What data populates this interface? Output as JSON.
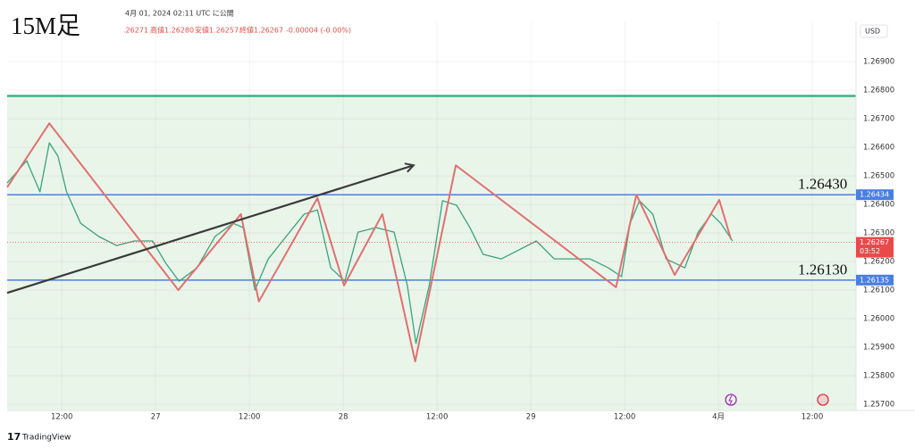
{
  "chart_data": {
    "type": "line",
    "title": "15M足",
    "subtitle": "4月 01, 2024 02:11 UTC に公開",
    "ohlc_labels": [
      ".26271",
      "高値1.26280",
      "安値1.26257",
      "終値1.26267",
      "-0.00004 (-0.00%)"
    ],
    "currency": "USD",
    "brand": "TradingView",
    "xlim": [
      5,
      113.6
    ],
    "ylim": [
      1.25678,
      1.27038
    ],
    "grid": true,
    "xticks": [
      {
        "value": 12,
        "label": "12:00"
      },
      {
        "value": 24,
        "label": "27"
      },
      {
        "value": 36,
        "label": "12:00"
      },
      {
        "value": 48,
        "label": "28"
      },
      {
        "value": 60,
        "label": "12:00"
      },
      {
        "value": 72,
        "label": "29"
      },
      {
        "value": 84,
        "label": "12:00"
      },
      {
        "value": 96,
        "label": "4月"
      },
      {
        "value": 108,
        "label": "12:00"
      }
    ],
    "yticks": [
      {
        "value": 1.257,
        "label": "1.25700"
      },
      {
        "value": 1.258,
        "label": "1.25800"
      },
      {
        "value": 1.259,
        "label": "1.25900"
      },
      {
        "value": 1.26,
        "label": "1.26000"
      },
      {
        "value": 1.261,
        "label": "1.26100"
      },
      {
        "value": 1.262,
        "label": "1.26200"
      },
      {
        "value": 1.263,
        "label": "1.26300"
      },
      {
        "value": 1.264,
        "label": "1.26400"
      },
      {
        "value": 1.265,
        "label": "1.26500"
      },
      {
        "value": 1.266,
        "label": "1.26600"
      },
      {
        "value": 1.267,
        "label": "1.26700"
      },
      {
        "value": 1.268,
        "label": "1.26800"
      },
      {
        "value": 1.269,
        "label": "1.26900"
      }
    ],
    "series": [
      {
        "color": "#3aa37a",
        "x": [
          5,
          7.5,
          9.2,
          10.4,
          11.5,
          12.6,
          14.4,
          16.7,
          19,
          21.3,
          23.6,
          25.3,
          27,
          29.3,
          31.6,
          33.9,
          35.2,
          36.7,
          38.4,
          40.7,
          43,
          44.7,
          46.4,
          48.2,
          49.9,
          52.2,
          54.5,
          56.2,
          57.3,
          59,
          60.7,
          62.5,
          64.2,
          65.9,
          68.2,
          70.5,
          72.7,
          75,
          77.3,
          79.6,
          81.9,
          83.6,
          84.7,
          85.9,
          87.6,
          89.3,
          91.7,
          93.4,
          95.1,
          96.3,
          97.8
        ],
        "values": [
          1.26475,
          1.26553,
          1.26444,
          1.26616,
          1.26569,
          1.26444,
          1.26334,
          1.26288,
          1.26256,
          1.26272,
          1.26272,
          1.26194,
          1.26131,
          1.26178,
          1.26288,
          1.26334,
          1.26319,
          1.261,
          1.26209,
          1.26288,
          1.26366,
          1.26381,
          1.26178,
          1.26131,
          1.26303,
          1.26319,
          1.26303,
          1.26116,
          1.25913,
          1.26116,
          1.26413,
          1.26397,
          1.26319,
          1.26225,
          1.26209,
          1.26241,
          1.26272,
          1.26209,
          1.26209,
          1.26209,
          1.26178,
          1.26147,
          1.26334,
          1.26413,
          1.26366,
          1.26209,
          1.26178,
          1.26303,
          1.26366,
          1.26334,
          1.26272
        ]
      },
      {
        "color": "#e07070",
        "x": [
          5,
          10.4,
          26.9,
          34.9,
          37.2,
          44.7,
          48.1,
          53,
          57.2,
          62.4,
          82.9,
          85.5,
          90.4,
          96.1,
          97.6
        ],
        "values": [
          1.2646,
          1.26684,
          1.261,
          1.26366,
          1.2606,
          1.26422,
          1.26116,
          1.26366,
          1.2585,
          1.26537,
          1.2611,
          1.26434,
          1.26153,
          1.26416,
          1.26278
        ]
      }
    ],
    "trendline": {
      "color": "#3a3a3a",
      "x": [
        5,
        57
      ],
      "values": [
        1.2609,
        1.26537
      ]
    },
    "resistance": {
      "value": 1.2678,
      "color": "#3fae8a",
      "zone_color": "#eaf5ea"
    },
    "levels": [
      {
        "value": 1.26434,
        "color": "#4a7fe0"
      },
      {
        "value": 1.26135,
        "color": "#4a7fe0"
      }
    ],
    "annotations": [
      {
        "value": 1.2643,
        "label": "1.26430"
      },
      {
        "value": 1.2613,
        "label": "1.26130"
      }
    ],
    "last_price": {
      "value": 1.26267,
      "countdown": "03:52",
      "color": "#e84a4a"
    }
  }
}
